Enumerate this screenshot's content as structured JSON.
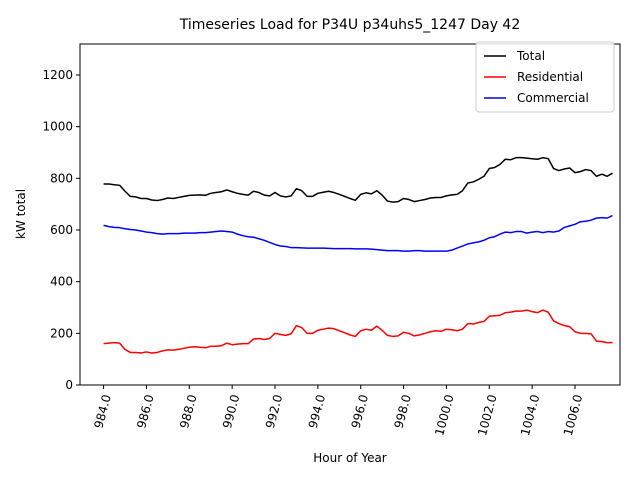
{
  "chart_data": {
    "type": "line",
    "title": "Timeseries Load for P34U p34uhs5_1247  Day 42",
    "xlabel": "Hour of Year",
    "ylabel": "kW total",
    "xlim": [
      982.9,
      1008.1
    ],
    "ylim": [
      0,
      1320
    ],
    "xticks": [
      984,
      986,
      988,
      990,
      992,
      994,
      996,
      998,
      1000,
      1002,
      1004,
      1006
    ],
    "xtick_labels": [
      "984.0",
      "986.0",
      "988.0",
      "990.0",
      "992.0",
      "994.0",
      "996.0",
      "998.0",
      "1000.0",
      "1002.0",
      "1004.0",
      "1006.0"
    ],
    "yticks": [
      0,
      200,
      400,
      600,
      800,
      1000,
      1200
    ],
    "ytick_labels": [
      "0",
      "200",
      "400",
      "600",
      "800",
      "1000",
      "1200"
    ],
    "grid": false,
    "legend": "top-right",
    "x": [
      984.0,
      984.25,
      984.5,
      984.75,
      985.0,
      985.25,
      985.5,
      985.75,
      986.0,
      986.25,
      986.5,
      986.75,
      987.0,
      987.25,
      987.5,
      987.75,
      988.0,
      988.25,
      988.5,
      988.75,
      989.0,
      989.25,
      989.5,
      989.75,
      990.0,
      990.25,
      990.5,
      990.75,
      991.0,
      991.25,
      991.5,
      991.75,
      992.0,
      992.25,
      992.5,
      992.75,
      993.0,
      993.25,
      993.5,
      993.75,
      994.0,
      994.25,
      994.5,
      994.75,
      995.0,
      995.25,
      995.5,
      995.75,
      996.0,
      996.25,
      996.5,
      996.75,
      997.0,
      997.25,
      997.5,
      997.75,
      998.0,
      998.25,
      998.5,
      998.75,
      999.0,
      999.25,
      999.5,
      999.75,
      1000.0,
      1000.25,
      1000.5,
      1000.75,
      1001.0,
      1001.25,
      1001.5,
      1001.75,
      1002.0,
      1002.25,
      1002.5,
      1002.75,
      1003.0,
      1003.25,
      1003.5,
      1003.75,
      1004.0,
      1004.25,
      1004.5,
      1004.75,
      1005.0,
      1005.25,
      1005.5,
      1005.75,
      1006.0,
      1006.25,
      1006.5,
      1006.75,
      1007.0,
      1007.25,
      1007.5,
      1007.75
    ],
    "series": [
      {
        "name": "Total",
        "color": "#000000",
        "values": [
          778,
          778,
          775,
          773,
          750,
          730,
          728,
          722,
          722,
          716,
          714,
          718,
          724,
          722,
          726,
          730,
          734,
          735,
          736,
          734,
          742,
          745,
          748,
          755,
          748,
          742,
          738,
          735,
          750,
          745,
          735,
          732,
          745,
          732,
          728,
          732,
          760,
          752,
          730,
          730,
          742,
          746,
          750,
          745,
          738,
          730,
          722,
          715,
          738,
          744,
          740,
          752,
          735,
          712,
          708,
          710,
          722,
          718,
          710,
          714,
          718,
          724,
          726,
          726,
          732,
          736,
          738,
          752,
          782,
          786,
          796,
          808,
          838,
          842,
          854,
          874,
          872,
          880,
          880,
          878,
          876,
          874,
          880,
          876,
          838,
          830,
          836,
          840,
          822,
          826,
          834,
          830,
          808,
          816,
          808,
          820
        ]
      },
      {
        "name": "Residential",
        "color": "#ff0000",
        "values": [
          160,
          162,
          164,
          162,
          138,
          126,
          126,
          124,
          128,
          124,
          126,
          132,
          136,
          135,
          138,
          142,
          146,
          148,
          146,
          144,
          150,
          150,
          152,
          162,
          156,
          158,
          160,
          160,
          178,
          180,
          176,
          180,
          200,
          196,
          192,
          198,
          230,
          222,
          200,
          200,
          212,
          216,
          220,
          218,
          210,
          202,
          194,
          188,
          210,
          216,
          212,
          228,
          212,
          192,
          188,
          190,
          204,
          200,
          190,
          194,
          200,
          206,
          210,
          208,
          216,
          214,
          210,
          216,
          238,
          236,
          242,
          246,
          266,
          268,
          270,
          280,
          282,
          286,
          286,
          290,
          284,
          280,
          290,
          282,
          248,
          238,
          230,
          226,
          206,
          200,
          200,
          198,
          170,
          168,
          164,
          164
        ]
      },
      {
        "name": "Commercial",
        "color": "#0000ff",
        "values": [
          618,
          613,
          610,
          609,
          605,
          602,
          600,
          596,
          592,
          590,
          586,
          584,
          586,
          586,
          586,
          588,
          588,
          588,
          590,
          590,
          592,
          594,
          596,
          594,
          592,
          584,
          578,
          574,
          572,
          566,
          560,
          552,
          544,
          538,
          536,
          532,
          532,
          531,
          530,
          530,
          530,
          530,
          529,
          528,
          528,
          528,
          528,
          527,
          527,
          527,
          526,
          524,
          522,
          520,
          520,
          520,
          518,
          518,
          520,
          520,
          518,
          518,
          518,
          518,
          518,
          522,
          530,
          538,
          546,
          550,
          554,
          560,
          570,
          574,
          584,
          592,
          590,
          594,
          594,
          588,
          592,
          594,
          590,
          594,
          592,
          596,
          610,
          616,
          622,
          632,
          634,
          638,
          646,
          648,
          646,
          656
        ]
      }
    ]
  }
}
